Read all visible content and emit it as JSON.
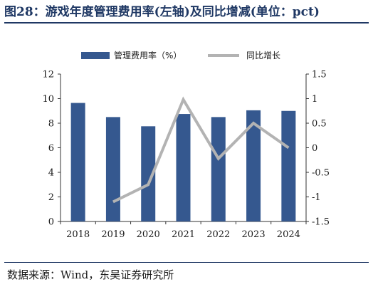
{
  "title": "图28：游戏年度管理费用率(左轴)及同比增减(单位：pct)",
  "source": "数据来源：Wind，东吴证券研究所",
  "chart_data": {
    "type": "bar+line",
    "categories": [
      "2018",
      "2019",
      "2020",
      "2021",
      "2022",
      "2023",
      "2024"
    ],
    "series": [
      {
        "name": "管理费用率（%）",
        "type": "bar",
        "axis": "left",
        "color": "#35588f",
        "values": [
          9.65,
          8.5,
          7.75,
          8.75,
          8.5,
          9.05,
          9.0
        ]
      },
      {
        "name": "同比增长",
        "type": "line",
        "axis": "right",
        "color": "#b3b3b3",
        "values": [
          null,
          -1.1,
          -0.75,
          0.98,
          -0.22,
          0.5,
          0.0
        ]
      }
    ],
    "y_left": {
      "min": 0,
      "max": 12,
      "ticks": [
        0,
        2,
        4,
        6,
        8,
        10,
        12
      ]
    },
    "y_right": {
      "min": -1.5,
      "max": 1.5,
      "ticks": [
        "-1.5",
        "-1",
        "-0.5",
        "0",
        "0.5",
        "1",
        "1.5"
      ]
    },
    "legend_position": "top",
    "grid": false
  }
}
